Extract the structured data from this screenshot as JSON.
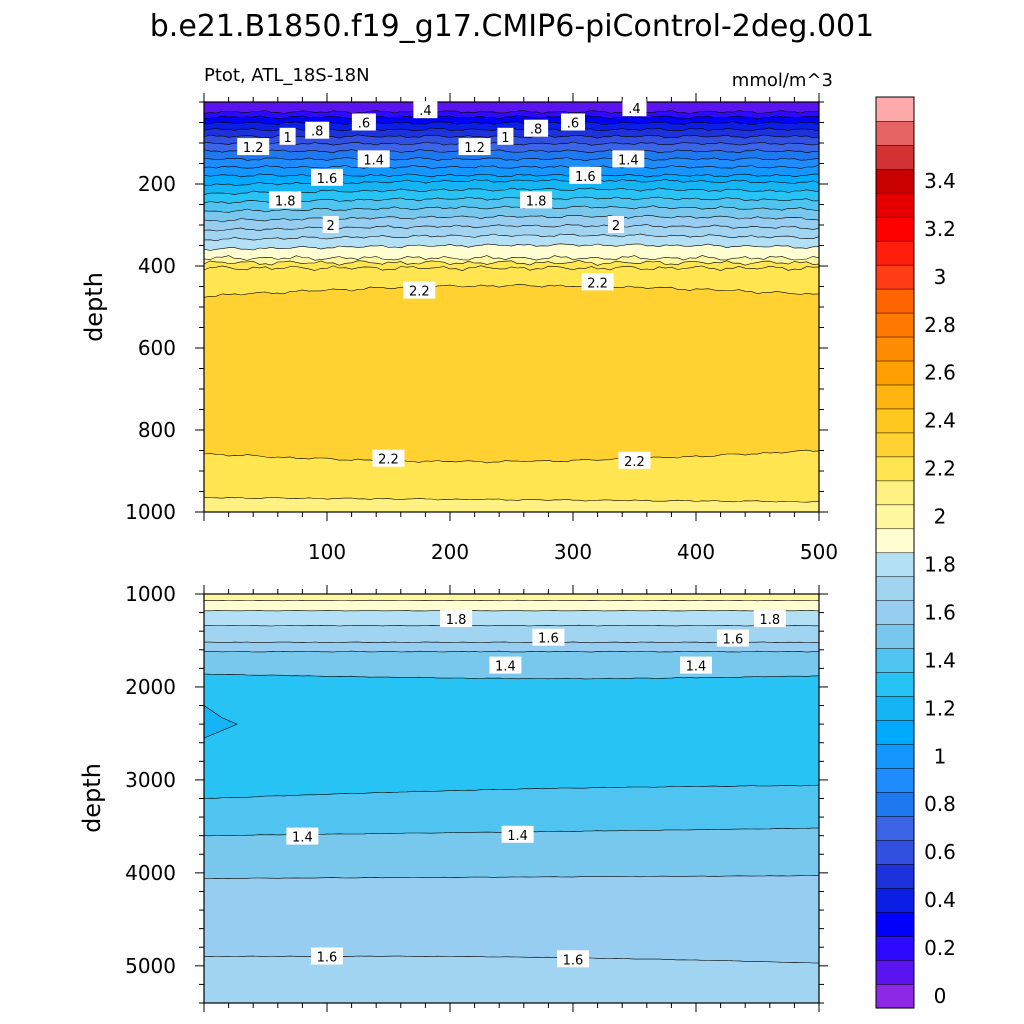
{
  "chart_data": {
    "type": "contour",
    "title": "b.e21.B1850.f19_g17.CMIP6-piControl-2deg.001",
    "left_string": "Ptot, ATL_18S-18N",
    "right_string": "mmol/m^3",
    "xlim": [
      0,
      500
    ],
    "x_ticks": [
      "100",
      "200",
      "300",
      "400",
      "500"
    ],
    "ylabel": "depth",
    "colorbar": {
      "levels": [
        0,
        0.1,
        0.2,
        0.3,
        0.4,
        0.5,
        0.6,
        0.7,
        0.8,
        0.9,
        1,
        1.1,
        1.2,
        1.3,
        1.4,
        1.5,
        1.6,
        1.7,
        1.8,
        1.9,
        2,
        2.1,
        2.2,
        2.3,
        2.4,
        2.5,
        2.6,
        2.7,
        2.8,
        2.9,
        3,
        3.1,
        3.2,
        3.3,
        3.4,
        3.5
      ],
      "labels": [
        "0",
        "0.2",
        "0.4",
        "0.6",
        "0.8",
        "1",
        "1.2",
        "1.4",
        "1.6",
        "1.8",
        "2",
        "2.2",
        "2.4",
        "2.6",
        "2.8",
        "3",
        "3.2",
        "3.4"
      ],
      "colors": [
        "#8c28e6",
        "#5a14f0",
        "#2d0aff",
        "#0000ff",
        "#0a1ee6",
        "#1e32dc",
        "#3250e0",
        "#3c64e6",
        "#1e78f0",
        "#1e8cff",
        "#1496ff",
        "#00aaff",
        "#14b4f5",
        "#28c3f5",
        "#50c4f0",
        "#78c8ee",
        "#96cdf0",
        "#a0d4f0",
        "#b4e0f5",
        "#ffffd2",
        "#fff8a0",
        "#fff082",
        "#ffe650",
        "#ffd232",
        "#ffc81e",
        "#ffb40f",
        "#ffa000",
        "#ff8c00",
        "#ff7800",
        "#ff6400",
        "#ff3c14",
        "#ff1e0a",
        "#ff0000",
        "#e60000",
        "#c80000",
        "#d23232",
        "#e66464",
        "#ffaaaa"
      ]
    },
    "upper_panel": {
      "ylim": [
        0,
        1000
      ],
      "y_ticks": [
        "200",
        "400",
        "600",
        "800",
        "1000"
      ],
      "contour_labels": [
        {
          "text": ".4",
          "x": 180,
          "depth": 20
        },
        {
          "text": ".4",
          "x": 350,
          "depth": 15
        },
        {
          "text": ".6",
          "x": 130,
          "depth": 50
        },
        {
          "text": ".6",
          "x": 300,
          "depth": 50
        },
        {
          "text": ".8",
          "x": 92,
          "depth": 70
        },
        {
          "text": ".8",
          "x": 270,
          "depth": 65
        },
        {
          "text": "1",
          "x": 68,
          "depth": 85
        },
        {
          "text": "1",
          "x": 245,
          "depth": 85
        },
        {
          "text": "1.2",
          "x": 40,
          "depth": 110
        },
        {
          "text": "1.2",
          "x": 220,
          "depth": 110
        },
        {
          "text": "1.4",
          "x": 138,
          "depth": 140
        },
        {
          "text": "1.4",
          "x": 345,
          "depth": 140
        },
        {
          "text": "1.6",
          "x": 100,
          "depth": 185
        },
        {
          "text": "1.6",
          "x": 310,
          "depth": 180
        },
        {
          "text": "1.8",
          "x": 66,
          "depth": 240
        },
        {
          "text": "1.8",
          "x": 270,
          "depth": 240
        },
        {
          "text": "2",
          "x": 103,
          "depth": 300
        },
        {
          "text": "2",
          "x": 335,
          "depth": 300
        },
        {
          "text": "2.2",
          "x": 175,
          "depth": 460
        },
        {
          "text": "2.2",
          "x": 320,
          "depth": 440
        },
        {
          "text": "2.2",
          "x": 150,
          "depth": 870
        },
        {
          "text": "2.2",
          "x": 350,
          "depth": 875
        }
      ]
    },
    "lower_panel": {
      "ylim": [
        1000,
        5400
      ],
      "y_ticks": [
        "1000",
        "2000",
        "3000",
        "4000",
        "5000"
      ],
      "contour_labels": [
        {
          "text": "1.8",
          "x": 205,
          "depth": 1270
        },
        {
          "text": "1.8",
          "x": 460,
          "depth": 1270
        },
        {
          "text": "1.6",
          "x": 280,
          "depth": 1470
        },
        {
          "text": "1.6",
          "x": 430,
          "depth": 1480
        },
        {
          "text": "1.4",
          "x": 245,
          "depth": 1770
        },
        {
          "text": "1.4",
          "x": 400,
          "depth": 1770
        },
        {
          "text": "1.4",
          "x": 80,
          "depth": 3610
        },
        {
          "text": "1.4",
          "x": 255,
          "depth": 3590
        },
        {
          "text": "1.6",
          "x": 100,
          "depth": 4900
        },
        {
          "text": "1.6",
          "x": 300,
          "depth": 4930
        }
      ]
    }
  }
}
